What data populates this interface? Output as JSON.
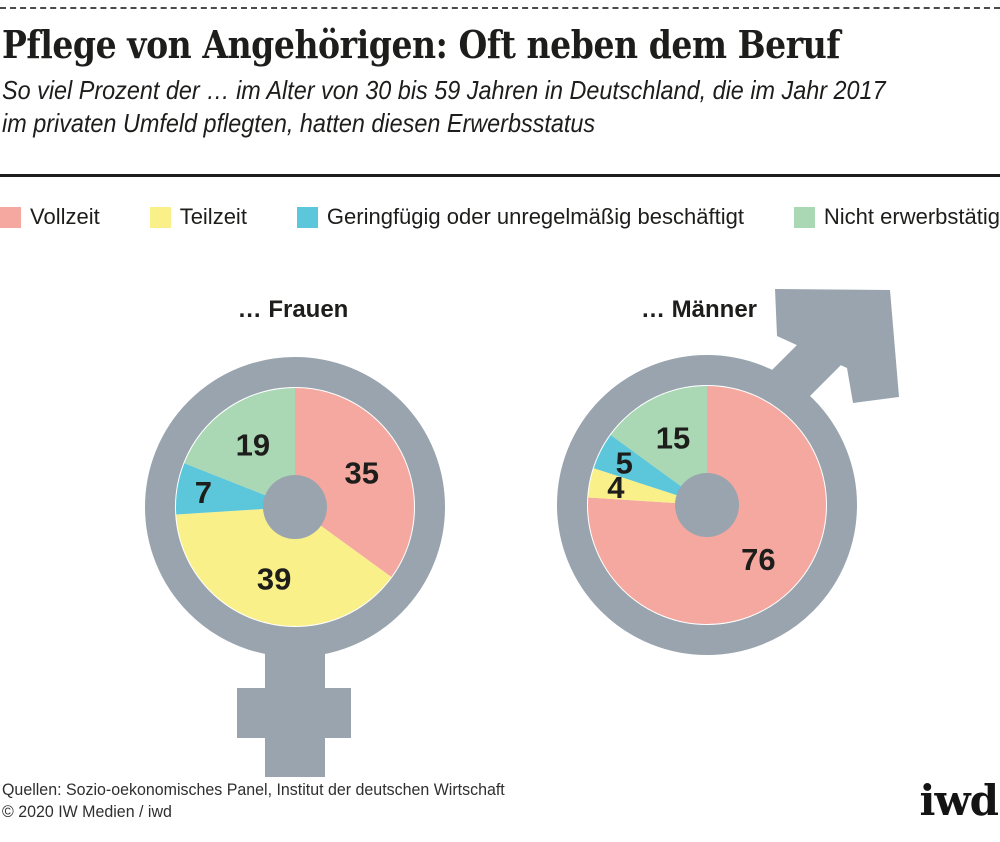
{
  "header": {
    "title": "Pflege von Angehörigen: Oft neben dem Beruf",
    "subtitle_line1": "So viel Prozent der … im Alter von 30 bis 59 Jahren in Deutschland, die im Jahr 2017",
    "subtitle_line2": "im privaten Umfeld pflegten, hatten diesen Erwerbsstatus"
  },
  "legend": {
    "items": [
      {
        "label": "Vollzeit"
      },
      {
        "label": "Teilzeit"
      },
      {
        "label": "Geringfügig oder unregelmäßig beschäftigt"
      },
      {
        "label": "Nicht erwerbstätig"
      }
    ]
  },
  "chart_data": {
    "type": "pie",
    "title": "Pflege von Angehörigen: Oft neben dem Beruf",
    "unit": "Prozent",
    "legend_position": "top",
    "categories": [
      "Vollzeit",
      "Teilzeit",
      "Geringfügig oder unregelmäßig beschäftigt",
      "Nicht erwerbstätig"
    ],
    "colors": [
      "#F5A89F",
      "#F9F08A",
      "#5CC6DA",
      "#AAD7B4"
    ],
    "charts": [
      {
        "label": "… Frauen",
        "gender": "female",
        "values": [
          35,
          39,
          7,
          19
        ]
      },
      {
        "label": "… Männer",
        "gender": "male",
        "values": [
          76,
          4,
          5,
          15
        ]
      }
    ]
  },
  "footer": {
    "sources": "Quellen: Sozio-oekonomisches Panel, Institut der deutschen Wirtschaft",
    "copyright": "© 2020 IW Medien / iwd",
    "logo": "iwd"
  },
  "colors": {
    "symbol_gray": "#99A4AE",
    "text": "#1D1D1B",
    "rule": "#1D1D1B"
  }
}
